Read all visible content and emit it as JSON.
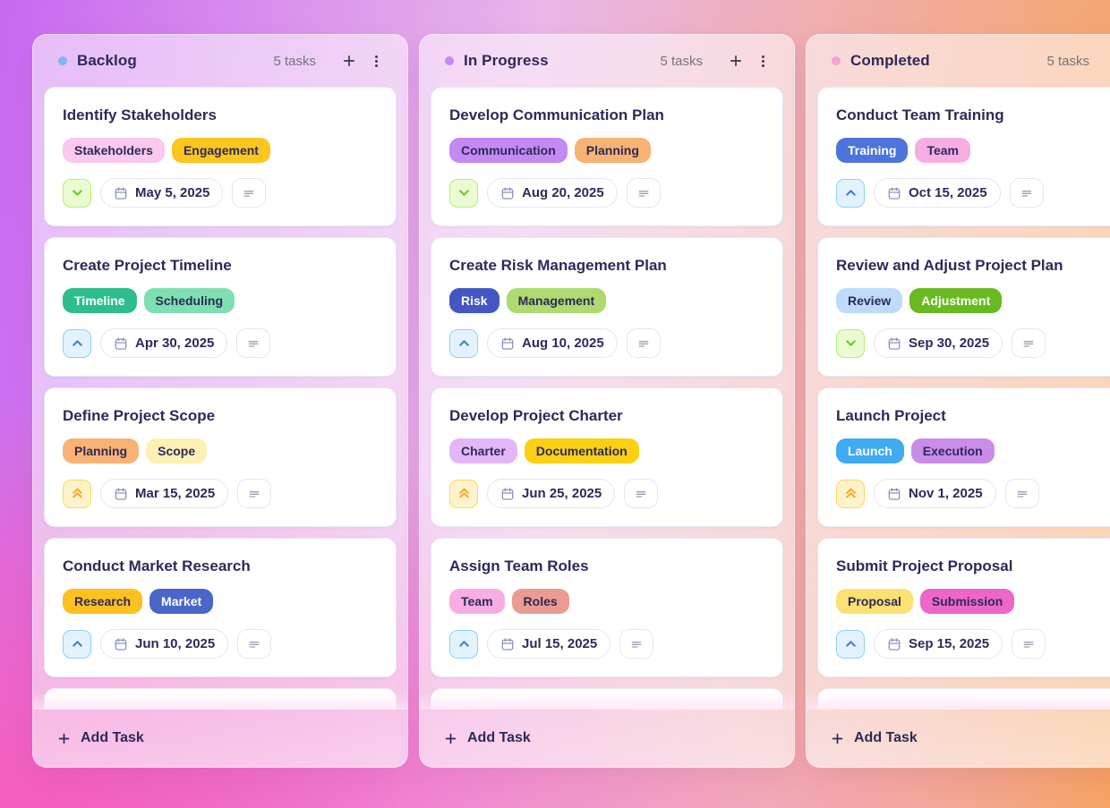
{
  "board": {
    "columns": [
      {
        "title": "Backlog",
        "dot_color": "#7db5f7",
        "task_count": "5 tasks",
        "add_task_label": "Add Task",
        "has_partial_card": true,
        "cards": [
          {
            "title": "Identify Stakeholders",
            "tags": [
              {
                "label": "Stakeholders",
                "bg": "#f9c8ec",
                "text": "#2c2a5a"
              },
              {
                "label": "Engagement",
                "bg": "#fcc61d",
                "text": "#2c2a5a"
              }
            ],
            "priority": "low",
            "due_date": "May 5, 2025",
            "has_description": true
          },
          {
            "title": "Create Project Timeline",
            "tags": [
              {
                "label": "Timeline",
                "bg": "#2ebd8e",
                "text": "#ffffff"
              },
              {
                "label": "Scheduling",
                "bg": "#7edfb2",
                "text": "#2c2a5a"
              }
            ],
            "priority": "medium",
            "due_date": "Apr 30, 2025",
            "has_description": true
          },
          {
            "title": "Define Project Scope",
            "tags": [
              {
                "label": "Planning",
                "bg": "#f8b273",
                "text": "#2c2a5a"
              },
              {
                "label": "Scope",
                "bg": "#fdf0b3",
                "text": "#2c2a5a"
              }
            ],
            "priority": "high",
            "due_date": "Mar 15, 2025",
            "has_description": true
          },
          {
            "title": "Conduct Market Research",
            "tags": [
              {
                "label": "Research",
                "bg": "#fcc11f",
                "text": "#2c2a5a"
              },
              {
                "label": "Market",
                "bg": "#4a66c8",
                "text": "#ffffff"
              }
            ],
            "priority": "medium",
            "due_date": "Jun 10, 2025",
            "has_description": true
          }
        ]
      },
      {
        "title": "In Progress",
        "dot_color": "#c487f7",
        "task_count": "5 tasks",
        "add_task_label": "Add Task",
        "has_partial_card": true,
        "cards": [
          {
            "title": "Develop Communication Plan",
            "tags": [
              {
                "label": "Communication",
                "bg": "#c489f2",
                "text": "#2c2a5a"
              },
              {
                "label": "Planning",
                "bg": "#f8b273",
                "text": "#2c2a5a"
              }
            ],
            "priority": "low",
            "due_date": "Aug 20, 2025",
            "has_description": true
          },
          {
            "title": "Create Risk Management Plan",
            "tags": [
              {
                "label": "Risk",
                "bg": "#4357c2",
                "text": "#ffffff"
              },
              {
                "label": "Management",
                "bg": "#aeda70",
                "text": "#2c2a5a"
              }
            ],
            "priority": "medium",
            "due_date": "Aug 10, 2025",
            "has_description": true
          },
          {
            "title": "Develop Project Charter",
            "tags": [
              {
                "label": "Charter",
                "bg": "#e3b6f8",
                "text": "#2c2a5a"
              },
              {
                "label": "Documentation",
                "bg": "#fcd012",
                "text": "#2c2a5a"
              }
            ],
            "priority": "high",
            "due_date": "Jun 25, 2025",
            "has_description": true
          },
          {
            "title": "Assign Team Roles",
            "tags": [
              {
                "label": "Team",
                "bg": "#f8ace4",
                "text": "#2c2a5a"
              },
              {
                "label": "Roles",
                "bg": "#eb9b90",
                "text": "#2c2a5a"
              }
            ],
            "priority": "medium",
            "due_date": "Jul 15, 2025",
            "has_description": true
          }
        ]
      },
      {
        "title": "Completed",
        "dot_color": "#f89fd4",
        "task_count": "5 tasks",
        "add_task_label": "Add Task",
        "has_partial_card": true,
        "cards": [
          {
            "title": "Conduct Team Training",
            "tags": [
              {
                "label": "Training",
                "bg": "#4d74dd",
                "text": "#ffffff"
              },
              {
                "label": "Team",
                "bg": "#f8ace4",
                "text": "#2c2a5a"
              }
            ],
            "priority": "medium",
            "due_date": "Oct 15, 2025",
            "has_description": true
          },
          {
            "title": "Review and Adjust Project Plan",
            "tags": [
              {
                "label": "Review",
                "bg": "#bedcfa",
                "text": "#2c2a5a"
              },
              {
                "label": "Adjustment",
                "bg": "#69ba21",
                "text": "#ffffff"
              }
            ],
            "priority": "low",
            "due_date": "Sep 30, 2025",
            "has_description": true
          },
          {
            "title": "Launch Project",
            "tags": [
              {
                "label": "Launch",
                "bg": "#3fabf2",
                "text": "#ffffff"
              },
              {
                "label": "Execution",
                "bg": "#c98ce9",
                "text": "#2c2a5a"
              }
            ],
            "priority": "high",
            "due_date": "Nov 1, 2025",
            "has_description": true
          },
          {
            "title": "Submit Project Proposal",
            "tags": [
              {
                "label": "Proposal",
                "bg": "#fae171",
                "text": "#2c2a5a"
              },
              {
                "label": "Submission",
                "bg": "#ee66c8",
                "text": "#2c2a5a"
              }
            ],
            "priority": "medium",
            "due_date": "Sep 15, 2025",
            "has_description": true
          }
        ]
      }
    ]
  }
}
